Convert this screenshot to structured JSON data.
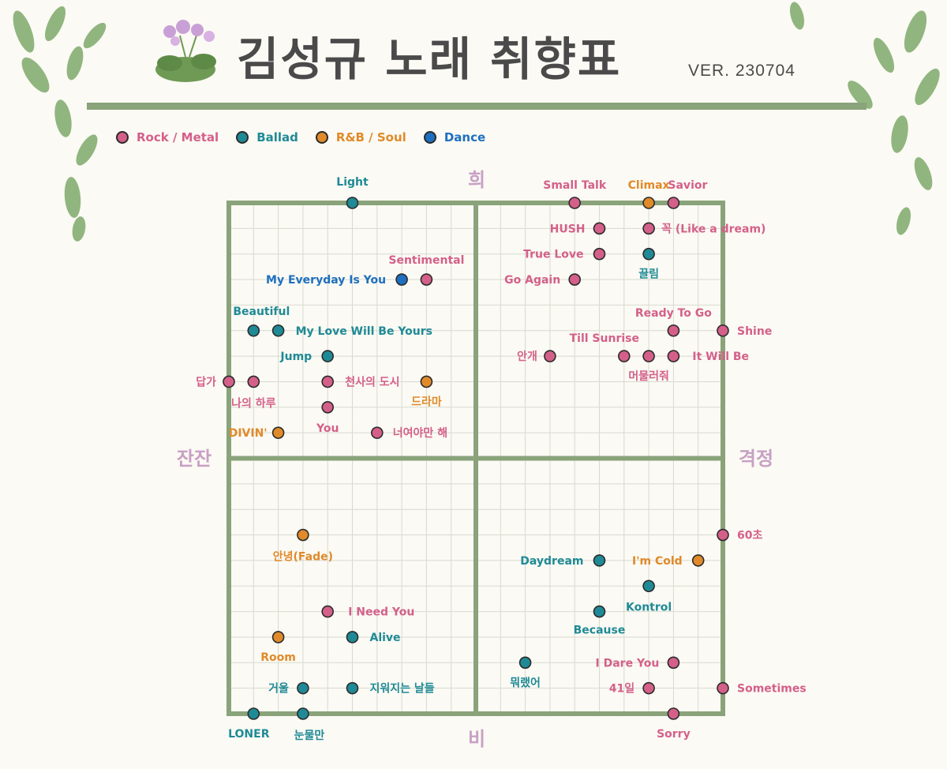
{
  "header": {
    "title": "김성규 노래 취향표",
    "version": "VER. 230704"
  },
  "legend": [
    {
      "name": "Rock / Metal",
      "color": "#d4608a"
    },
    {
      "name": "Ballad",
      "color": "#1f8a96"
    },
    {
      "name": "R&B / Soul",
      "color": "#e08a2a"
    },
    {
      "name": "Dance",
      "color": "#1e6fc0"
    }
  ],
  "chart_data": {
    "type": "scatter",
    "title": "김성규 노래 취향표",
    "axes": {
      "top": "희",
      "bottom": "비",
      "left": "잔잔",
      "right": "격정"
    },
    "xlim": [
      -10,
      10
    ],
    "ylim": [
      -10,
      10
    ],
    "grid": true,
    "legend_placement": "top-left",
    "points": [
      {
        "label": "Light",
        "genre": "Ballad",
        "x": -5,
        "y": 10
      },
      {
        "label": "Small Talk",
        "genre": "Rock / Metal",
        "x": 4,
        "y": 10
      },
      {
        "label": "Climax",
        "genre": "R&B / Soul",
        "x": 7,
        "y": 10
      },
      {
        "label": "Savior",
        "genre": "Rock / Metal",
        "x": 8,
        "y": 10
      },
      {
        "label": "HUSH",
        "genre": "Rock / Metal",
        "x": 5,
        "y": 9
      },
      {
        "label": "꼭 (Like a dream)",
        "genre": "Rock / Metal",
        "x": 7,
        "y": 9
      },
      {
        "label": "True Love",
        "genre": "Rock / Metal",
        "x": 5,
        "y": 8
      },
      {
        "label": "끌림",
        "genre": "Ballad",
        "x": 7,
        "y": 8
      },
      {
        "label": "Sentimental",
        "genre": "Rock / Metal",
        "x": -2,
        "y": 7
      },
      {
        "label": "My Everyday Is You",
        "genre": "Dance",
        "x": -3,
        "y": 7
      },
      {
        "label": "Go Again",
        "genre": "Rock / Metal",
        "x": 4,
        "y": 7
      },
      {
        "label": "Beautiful",
        "genre": "Ballad",
        "x": -9,
        "y": 5
      },
      {
        "label": "My Love Will Be Yours",
        "genre": "Ballad",
        "x": -8,
        "y": 5
      },
      {
        "label": "Ready To Go",
        "genre": "Rock / Metal",
        "x": 8,
        "y": 5
      },
      {
        "label": "Shine",
        "genre": "Rock / Metal",
        "x": 10,
        "y": 5
      },
      {
        "label": "Jump",
        "genre": "Ballad",
        "x": -6,
        "y": 4
      },
      {
        "label": "안개",
        "genre": "Rock / Metal",
        "x": 3,
        "y": 4
      },
      {
        "label": "Till Sunrise",
        "genre": "Rock / Metal",
        "x": 6,
        "y": 4
      },
      {
        "label": "머물러줘",
        "genre": "Rock / Metal",
        "x": 7,
        "y": 4
      },
      {
        "label": "It Will Be",
        "genre": "Rock / Metal",
        "x": 8,
        "y": 4
      },
      {
        "label": "답가",
        "genre": "Rock / Metal",
        "x": -10,
        "y": 3
      },
      {
        "label": "나의 하루",
        "genre": "Rock / Metal",
        "x": -9,
        "y": 3
      },
      {
        "label": "천사의 도시",
        "genre": "Rock / Metal",
        "x": -6,
        "y": 3
      },
      {
        "label": "드라마",
        "genre": "R&B / Soul",
        "x": -2,
        "y": 3
      },
      {
        "label": "You",
        "genre": "Rock / Metal",
        "x": -6,
        "y": 2
      },
      {
        "label": "DIVIN'",
        "genre": "R&B / Soul",
        "x": -8,
        "y": 1
      },
      {
        "label": "너여야만 해",
        "genre": "Rock / Metal",
        "x": -4,
        "y": 1
      },
      {
        "label": "안녕(Fade)",
        "genre": "R&B / Soul",
        "x": -7,
        "y": -3
      },
      {
        "label": "60초",
        "genre": "Rock / Metal",
        "x": 10,
        "y": -3
      },
      {
        "label": "Daydream",
        "genre": "Ballad",
        "x": 5,
        "y": -4
      },
      {
        "label": "I'm Cold",
        "genre": "R&B / Soul",
        "x": 9,
        "y": -4
      },
      {
        "label": "Kontrol",
        "genre": "Ballad",
        "x": 7,
        "y": -5
      },
      {
        "label": "I Need You",
        "genre": "Rock / Metal",
        "x": -6,
        "y": -6
      },
      {
        "label": "Because",
        "genre": "Ballad",
        "x": 5,
        "y": -6
      },
      {
        "label": "Room",
        "genre": "R&B / Soul",
        "x": -8,
        "y": -7
      },
      {
        "label": "Alive",
        "genre": "Ballad",
        "x": -5,
        "y": -7
      },
      {
        "label": "뭐랬어",
        "genre": "Ballad",
        "x": 2,
        "y": -8
      },
      {
        "label": "I Dare You",
        "genre": "Rock / Metal",
        "x": 8,
        "y": -8
      },
      {
        "label": "거울",
        "genre": "Ballad",
        "x": -7,
        "y": -9
      },
      {
        "label": "지워지는 날들",
        "genre": "Ballad",
        "x": -5,
        "y": -9
      },
      {
        "label": "41일",
        "genre": "Rock / Metal",
        "x": 7,
        "y": -9
      },
      {
        "label": "Sometimes",
        "genre": "Rock / Metal",
        "x": 10,
        "y": -9
      },
      {
        "label": "LONER",
        "genre": "Ballad",
        "x": -9,
        "y": -10
      },
      {
        "label": "눈물만",
        "genre": "Ballad",
        "x": -7,
        "y": -10
      },
      {
        "label": "Sorry",
        "genre": "Rock / Metal",
        "x": 8,
        "y": -10
      }
    ]
  }
}
